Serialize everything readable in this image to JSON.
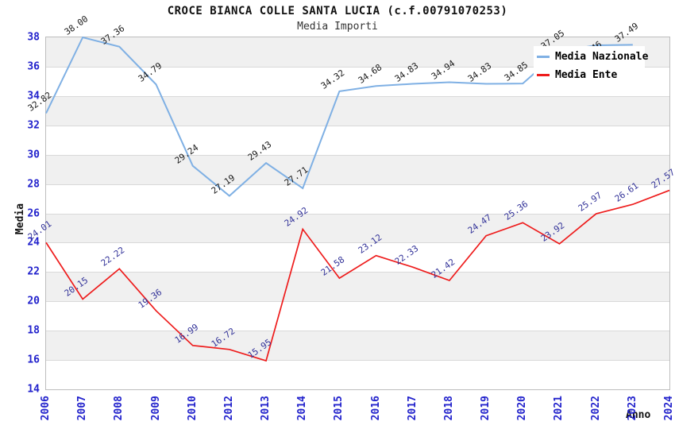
{
  "title": "CROCE BIANCA COLLE SANTA LUCIA (c.f.00791070253)",
  "subtitle": "Media Importi",
  "chart_data": {
    "type": "line",
    "categories": [
      "2006",
      "2007",
      "2008",
      "2009",
      "2010",
      "2012",
      "2013",
      "2014",
      "2015",
      "2016",
      "2017",
      "2018",
      "2019",
      "2020",
      "2021",
      "2022",
      "2023",
      "2024"
    ],
    "series": [
      {
        "name": "Media Nazionale",
        "color": "#7fb0e4",
        "label_color": "#1a1a1a",
        "values": [
          32.82,
          38.0,
          37.36,
          34.79,
          29.24,
          27.19,
          29.43,
          27.71,
          34.32,
          34.68,
          34.83,
          34.94,
          34.83,
          34.85,
          37.05,
          37.46,
          37.49,
          null
        ]
      },
      {
        "name": "Media Ente",
        "color": "#ee1c1c",
        "label_color": "#333399",
        "values": [
          24.01,
          20.15,
          22.22,
          19.36,
          16.99,
          16.72,
          15.95,
          24.92,
          21.58,
          23.12,
          22.33,
          21.42,
          24.47,
          25.36,
          23.92,
          25.97,
          26.61,
          27.57
        ]
      }
    ],
    "xlabel": "Anno",
    "ylabel": "Media",
    "ylim": [
      14,
      38
    ],
    "ytick_step": 2,
    "grid": "horizontal-bands",
    "legend_position": "top-right"
  },
  "colors": {
    "tick_label": "#2222cc",
    "band_gray": "#f0f0f0",
    "gridline": "#d9d9d9",
    "plot_border": "#bdbdbd",
    "background": "#ffffff"
  }
}
